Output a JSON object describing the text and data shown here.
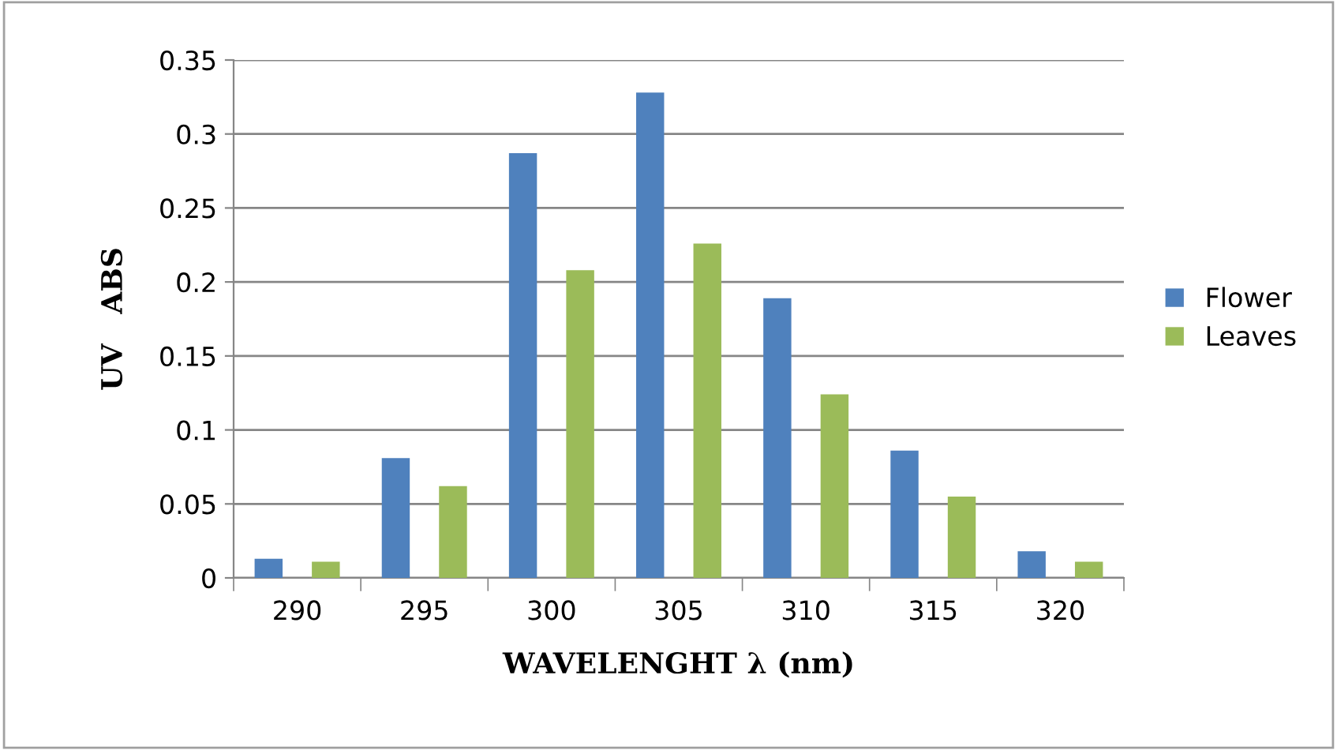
{
  "chart_data": {
    "type": "bar",
    "xlabel": "WAVELENGHT λ (nm)",
    "ylabel": "UV   ABS",
    "categories": [
      "290",
      "295",
      "300",
      "305",
      "310",
      "315",
      "320"
    ],
    "series": [
      {
        "name": "Flower",
        "color": "#4f81bd",
        "values": [
          0.013,
          0.081,
          0.287,
          0.328,
          0.189,
          0.086,
          0.018
        ]
      },
      {
        "name": "Leaves",
        "color": "#9bbb59",
        "values": [
          0.011,
          0.062,
          0.208,
          0.226,
          0.124,
          0.055,
          0.011
        ]
      }
    ],
    "ylim": [
      0,
      0.35
    ],
    "yticks": [
      {
        "value": 0,
        "label": "0"
      },
      0.05,
      0.1,
      0.15,
      0.2,
      0.25,
      0.3,
      0.35
    ],
    "grid": "y",
    "legend": "right"
  }
}
